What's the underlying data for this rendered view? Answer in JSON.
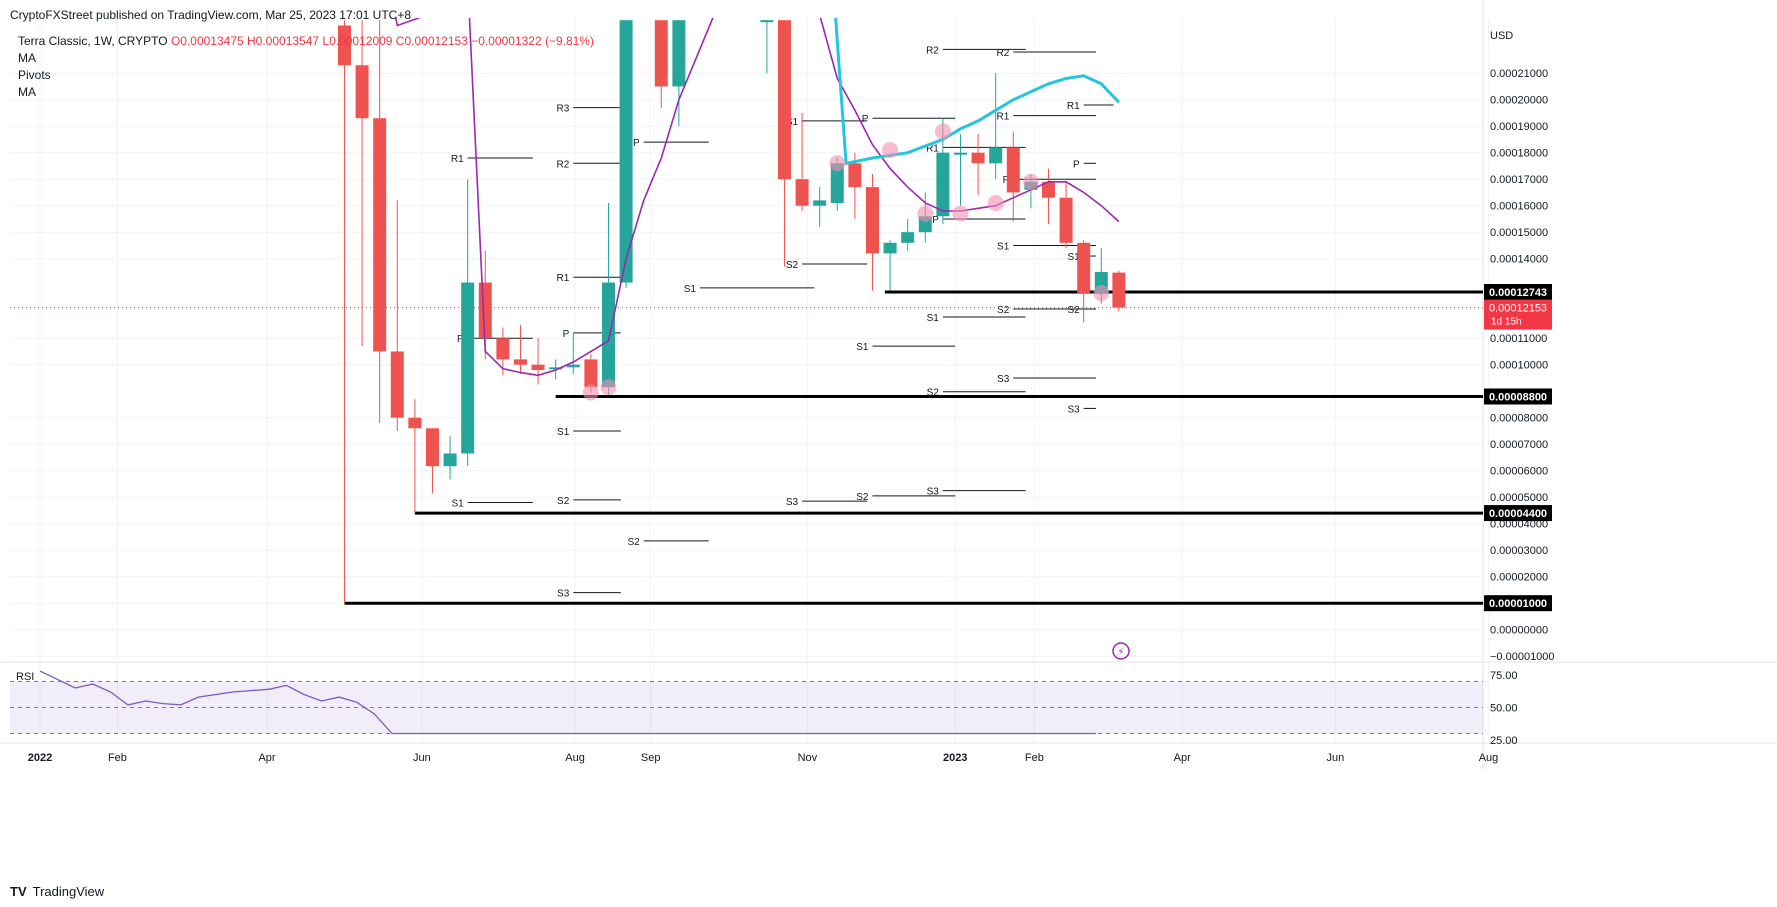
{
  "header": {
    "published": "CryptoFXStreet published on TradingView.com, Mar 25, 2023 17:01 UTC+8",
    "symbol": "Terra Classic, 1W, CRYPTO",
    "ohlc": "O0.00013475  H0.00013547  L0.00012009  C0.00012153  −0.00001322 (−9.81%)",
    "indicators": [
      "MA",
      "Pivots",
      "MA"
    ]
  },
  "footer": {
    "brand": "TradingView"
  },
  "chart_data": {
    "type": "candlestick",
    "currency_label": "USD",
    "y_ticks": [
      "0.00021000",
      "0.00020000",
      "0.00019000",
      "0.00018000",
      "0.00017000",
      "0.00016000",
      "0.00015000",
      "0.00014000",
      "0.00011000",
      "0.00010000",
      "0.00008000",
      "0.00007000",
      "0.00006000",
      "0.00005000",
      "0.00004000",
      "0.00003000",
      "0.00002000",
      "0.00001000",
      "0.00000000",
      "−0.00001000"
    ],
    "ylim": [
      -1e-05,
      0.000225
    ],
    "x_ticks": [
      {
        "label": "2022",
        "t": 0.0,
        "bold": true
      },
      {
        "label": "Feb",
        "t": 4.4
      },
      {
        "label": "Apr",
        "t": 12.9
      },
      {
        "label": "Jun",
        "t": 21.7
      },
      {
        "label": "Aug",
        "t": 30.4
      },
      {
        "label": "Sep",
        "t": 34.7
      },
      {
        "label": "Nov",
        "t": 43.6
      },
      {
        "label": "2023",
        "t": 52.0,
        "bold": true
      },
      {
        "label": "Feb",
        "t": 56.5
      },
      {
        "label": "Apr",
        "t": 64.9
      },
      {
        "label": "Jun",
        "t": 73.6
      },
      {
        "label": "Aug",
        "t": 82.3
      }
    ],
    "candles": [
      {
        "t": 17.3,
        "o": 0.000228,
        "h": 0.00023,
        "l": 1.02e-05,
        "c": 0.000213
      },
      {
        "t": 18.3,
        "o": 0.000213,
        "h": 0.00023,
        "l": 0.000107,
        "c": 0.000193
      },
      {
        "t": 19.3,
        "o": 0.000193,
        "h": 0.00023,
        "l": 7.8e-05,
        "c": 0.000105
      },
      {
        "t": 20.3,
        "o": 0.000105,
        "h": 0.000162,
        "l": 7.5e-05,
        "c": 8e-05
      },
      {
        "t": 21.3,
        "o": 8e-05,
        "h": 8.7e-05,
        "l": 4.4e-05,
        "c": 7.6e-05
      },
      {
        "t": 22.3,
        "o": 7.6e-05,
        "h": 7.6e-05,
        "l": 5.15e-05,
        "c": 6.17e-05
      },
      {
        "t": 23.3,
        "o": 6.17e-05,
        "h": 7.3e-05,
        "l": 5.67e-05,
        "c": 6.65e-05
      },
      {
        "t": 24.3,
        "o": 6.65e-05,
        "h": 0.00017,
        "l": 6.17e-05,
        "c": 0.000131
      },
      {
        "t": 25.3,
        "o": 0.000131,
        "h": 0.000143,
        "l": 0.000102,
        "c": 0.00011
      },
      {
        "t": 26.3,
        "o": 0.00011,
        "h": 0.000114,
        "l": 9.6e-05,
        "c": 0.000102
      },
      {
        "t": 27.3,
        "o": 0.000102,
        "h": 0.000115,
        "l": 9.65e-05,
        "c": 0.0001
      },
      {
        "t": 28.3,
        "o": 0.0001,
        "h": 0.00011,
        "l": 9.25e-05,
        "c": 9.8e-05
      },
      {
        "t": 29.3,
        "o": 9.85e-05,
        "h": 0.000102,
        "l": 9.45e-05,
        "c": 9.9e-05
      },
      {
        "t": 30.3,
        "o": 9.9e-05,
        "h": 0.000112,
        "l": 9.65e-05,
        "c": 0.0001
      },
      {
        "t": 31.3,
        "o": 0.000102,
        "h": 0.000104,
        "l": 8.95e-05,
        "c": 9.15e-05
      },
      {
        "t": 32.3,
        "o": 9.15e-05,
        "h": 0.000161,
        "l": 8.85e-05,
        "c": 0.000131
      },
      {
        "t": 33.3,
        "o": 0.000131,
        "h": 0.00023,
        "l": 0.000129,
        "c": 0.00023
      },
      {
        "t": 35.3,
        "o": 0.00023,
        "h": 0.00023,
        "l": 0.000197,
        "c": 0.000205
      },
      {
        "t": 36.3,
        "o": 0.000205,
        "h": 0.00023,
        "l": 0.00019,
        "c": 0.00023
      },
      {
        "t": 41.3,
        "o": 0.00023,
        "h": 0.00023,
        "l": 0.00021,
        "c": 0.00023
      },
      {
        "t": 42.3,
        "o": 0.00023,
        "h": 0.00023,
        "l": 0.000137,
        "c": 0.00017
      },
      {
        "t": 43.3,
        "o": 0.00017,
        "h": 0.000195,
        "l": 0.000158,
        "c": 0.00016
      },
      {
        "t": 44.3,
        "o": 0.00016,
        "h": 0.000167,
        "l": 0.000152,
        "c": 0.000162
      },
      {
        "t": 45.3,
        "o": 0.000161,
        "h": 0.000178,
        "l": 0.000158,
        "c": 0.000176
      },
      {
        "t": 46.3,
        "o": 0.000176,
        "h": 0.00018,
        "l": 0.000155,
        "c": 0.000167
      },
      {
        "t": 47.3,
        "o": 0.000167,
        "h": 0.000172,
        "l": 0.000128,
        "c": 0.000142
      },
      {
        "t": 48.3,
        "o": 0.000142,
        "h": 0.000147,
        "l": 0.000128,
        "c": 0.000146
      },
      {
        "t": 49.3,
        "o": 0.000146,
        "h": 0.000155,
        "l": 0.000143,
        "c": 0.00015
      },
      {
        "t": 50.3,
        "o": 0.00015,
        "h": 0.000165,
        "l": 0.000146,
        "c": 0.000156
      },
      {
        "t": 51.3,
        "o": 0.000156,
        "h": 0.000193,
        "l": 0.000153,
        "c": 0.00018
      },
      {
        "t": 52.3,
        "o": 0.00018,
        "h": 0.000187,
        "l": 0.00016,
        "c": 0.00018
      },
      {
        "t": 53.3,
        "o": 0.00018,
        "h": 0.000187,
        "l": 0.000164,
        "c": 0.000176
      },
      {
        "t": 54.3,
        "o": 0.000176,
        "h": 0.00021,
        "l": 0.00017,
        "c": 0.000182
      },
      {
        "t": 55.3,
        "o": 0.000182,
        "h": 0.000188,
        "l": 0.000154,
        "c": 0.000165
      },
      {
        "t": 56.3,
        "o": 0.000166,
        "h": 0.000172,
        "l": 0.000159,
        "c": 0.000169
      },
      {
        "t": 57.3,
        "o": 0.000169,
        "h": 0.000174,
        "l": 0.000153,
        "c": 0.000163
      },
      {
        "t": 58.3,
        "o": 0.000163,
        "h": 0.000169,
        "l": 0.000144,
        "c": 0.000146
      },
      {
        "t": 59.3,
        "o": 0.000146,
        "h": 0.000147,
        "l": 0.000116,
        "c": 0.000127
      },
      {
        "t": 60.3,
        "o": 0.000127,
        "h": 0.000144,
        "l": 0.000123,
        "c": 0.000135
      },
      {
        "t": 61.3,
        "o": 0.00013475,
        "h": 0.00013547,
        "l": 0.00012009,
        "c": 0.00012153
      }
    ],
    "ma_purple": [
      [
        19.3,
        0.00026
      ],
      [
        20.3,
        0.000228
      ],
      [
        23.3,
        0.000235
      ],
      [
        24.3,
        0.000245
      ],
      [
        25.3,
        0.000105
      ],
      [
        26.3,
        9.85e-05
      ],
      [
        27.3,
        9.7e-05
      ],
      [
        28.3,
        9.6e-05
      ],
      [
        29.3,
        9.8e-05
      ],
      [
        30.3,
        0.000101
      ],
      [
        31.3,
        0.000105
      ],
      [
        32.3,
        0.000109
      ],
      [
        33.3,
        0.00014
      ],
      [
        34.3,
        0.000162
      ],
      [
        35.3,
        0.000178
      ],
      [
        36.3,
        0.0002
      ],
      [
        37.3,
        0.000216
      ],
      [
        38.3,
        0.000232
      ],
      [
        44.3,
        0.000232
      ],
      [
        45.3,
        0.000208
      ],
      [
        46.3,
        0.000196
      ],
      [
        47.3,
        0.000183
      ],
      [
        48.3,
        0.000174
      ],
      [
        49.3,
        0.000167
      ],
      [
        50.3,
        0.000161
      ],
      [
        51.3,
        0.000158
      ],
      [
        52.3,
        0.000158
      ],
      [
        53.3,
        0.000159
      ],
      [
        54.3,
        0.00016
      ],
      [
        55.3,
        0.000163
      ],
      [
        56.3,
        0.000166
      ],
      [
        57.3,
        0.000169
      ],
      [
        58.3,
        0.000169
      ],
      [
        59.3,
        0.000165
      ],
      [
        60.3,
        0.00016
      ],
      [
        61.3,
        0.000154
      ]
    ],
    "ma_cyan": [
      [
        45.2,
        0.000232
      ],
      [
        45.3,
        0.000222
      ],
      [
        45.8,
        0.000176
      ],
      [
        47.3,
        0.000178
      ],
      [
        49.3,
        0.00018
      ],
      [
        51.3,
        0.000185
      ],
      [
        52.3,
        0.000189
      ],
      [
        53.3,
        0.000192
      ],
      [
        54.3,
        0.000196
      ],
      [
        55.3,
        0.0002
      ],
      [
        56.3,
        0.000203
      ],
      [
        57.3,
        0.000206
      ],
      [
        58.3,
        0.000208
      ],
      [
        59.3,
        0.000209
      ],
      [
        60.3,
        0.000206
      ],
      [
        61.3,
        0.000199
      ]
    ],
    "pivot_levels": [
      {
        "label": "P",
        "t0": 24.3,
        "t1": 28.0,
        "y": 0.00011
      },
      {
        "label": "R1",
        "t0": 24.3,
        "t1": 28.0,
        "y": 0.000178
      },
      {
        "label": "S1",
        "t0": 24.3,
        "t1": 28.0,
        "y": 4.8e-05
      },
      {
        "label": "P",
        "t0": 30.3,
        "t1": 33.0,
        "y": 0.000112
      },
      {
        "label": "R1",
        "t0": 30.3,
        "t1": 33.0,
        "y": 0.000133
      },
      {
        "label": "R2",
        "t0": 30.3,
        "t1": 33.0,
        "y": 0.000176
      },
      {
        "label": "R3",
        "t0": 30.3,
        "t1": 33.0,
        "y": 0.000197
      },
      {
        "label": "S1",
        "t0": 30.3,
        "t1": 33.0,
        "y": 7.5e-05
      },
      {
        "label": "S2",
        "t0": 30.3,
        "t1": 33.0,
        "y": 4.9e-05
      },
      {
        "label": "S3",
        "t0": 30.3,
        "t1": 33.0,
        "y": 1.4e-05
      },
      {
        "label": "P",
        "t0": 34.3,
        "t1": 38.0,
        "y": 0.000184
      },
      {
        "label": "S2",
        "t0": 34.3,
        "t1": 38.0,
        "y": 3.35e-05
      },
      {
        "label": "S1",
        "t0": 37.5,
        "t1": 44.0,
        "y": 0.000129
      },
      {
        "label": "S1",
        "t0": 43.3,
        "t1": 47.0,
        "y": 0.000192
      },
      {
        "label": "S2",
        "t0": 43.3,
        "t1": 47.0,
        "y": 0.000138
      },
      {
        "label": "S3",
        "t0": 43.3,
        "t1": 47.0,
        "y": 4.85e-05
      },
      {
        "label": "P",
        "t0": 47.3,
        "t1": 52.0,
        "y": 0.000193
      },
      {
        "label": "S1",
        "t0": 47.3,
        "t1": 52.0,
        "y": 0.000107
      },
      {
        "label": "S2",
        "t0": 47.3,
        "t1": 52.0,
        "y": 5.05e-05
      },
      {
        "label": "R2",
        "t0": 51.3,
        "t1": 56.0,
        "y": 0.000219
      },
      {
        "label": "R1",
        "t0": 51.3,
        "t1": 56.0,
        "y": 0.000182
      },
      {
        "label": "P",
        "t0": 51.3,
        "t1": 56.0,
        "y": 0.000155
      },
      {
        "label": "S1",
        "t0": 51.3,
        "t1": 56.0,
        "y": 0.000118
      },
      {
        "label": "S2",
        "t0": 51.3,
        "t1": 56.0,
        "y": 8.98e-05
      },
      {
        "label": "S3",
        "t0": 51.3,
        "t1": 56.0,
        "y": 5.25e-05
      },
      {
        "label": "R2",
        "t0": 55.3,
        "t1": 60.0,
        "y": 0.000218
      },
      {
        "label": "R1",
        "t0": 55.3,
        "t1": 60.0,
        "y": 0.000194
      },
      {
        "label": "P",
        "t0": 55.3,
        "t1": 60.0,
        "y": 0.00017
      },
      {
        "label": "S1",
        "t0": 55.3,
        "t1": 60.0,
        "y": 0.000145
      },
      {
        "label": "S2",
        "t0": 55.3,
        "t1": 60.0,
        "y": 0.000121
      },
      {
        "label": "S3",
        "t0": 55.3,
        "t1": 60.0,
        "y": 9.5e-05
      },
      {
        "label": "R1",
        "t0": 59.3,
        "t1": 61.0,
        "y": 0.000198
      },
      {
        "label": "P",
        "t0": 59.3,
        "t1": 60.0,
        "y": 0.000176
      },
      {
        "label": "S1",
        "t0": 59.3,
        "t1": 60.0,
        "y": 0.000141
      },
      {
        "label": "S2",
        "t0": 59.3,
        "t1": 60.0,
        "y": 0.000121
      },
      {
        "label": "S3",
        "t0": 59.3,
        "t1": 60.0,
        "y": 8.35e-05
      }
    ],
    "horizontal_levels": [
      {
        "value": 0.00012743,
        "label": "0.00012743",
        "t0": 48.0
      },
      {
        "value": 8.8e-05,
        "label": "0.00008800",
        "t0": 29.3
      },
      {
        "value": 4.4e-05,
        "label": "0.00004400",
        "t0": 21.3
      },
      {
        "value": 1e-05,
        "label": "0.00001000",
        "t0": 17.3
      }
    ],
    "current_price": {
      "value": 0.00012153,
      "label": "0.00012153",
      "countdown": "1d 15h"
    },
    "circles": [
      [
        31.3,
        8.95e-05
      ],
      [
        32.3,
        9.15e-05
      ],
      [
        45.3,
        0.000176
      ],
      [
        48.3,
        0.000181
      ],
      [
        50.3,
        0.000157
      ],
      [
        51.3,
        0.000188
      ],
      [
        52.3,
        0.000157
      ],
      [
        54.3,
        0.000161
      ],
      [
        56.3,
        0.000169
      ],
      [
        60.3,
        0.000127
      ]
    ],
    "rsi": {
      "label": "RSI",
      "levels": [
        70,
        50,
        30
      ],
      "ticks": [
        "75.00",
        "50.00",
        "25.00"
      ],
      "values": [
        [
          0,
          78
        ],
        [
          2,
          65
        ],
        [
          3,
          68
        ],
        [
          4,
          62
        ],
        [
          5,
          52
        ],
        [
          6,
          55
        ],
        [
          7,
          53
        ],
        [
          8,
          52
        ],
        [
          9,
          58
        ],
        [
          10,
          60
        ],
        [
          11,
          62
        ],
        [
          12,
          63
        ],
        [
          13,
          64
        ],
        [
          14,
          67
        ],
        [
          15,
          60
        ],
        [
          16,
          55
        ],
        [
          17,
          58
        ],
        [
          18,
          54
        ],
        [
          19,
          45
        ],
        [
          20,
          30
        ],
        [
          60,
          30
        ]
      ]
    }
  }
}
